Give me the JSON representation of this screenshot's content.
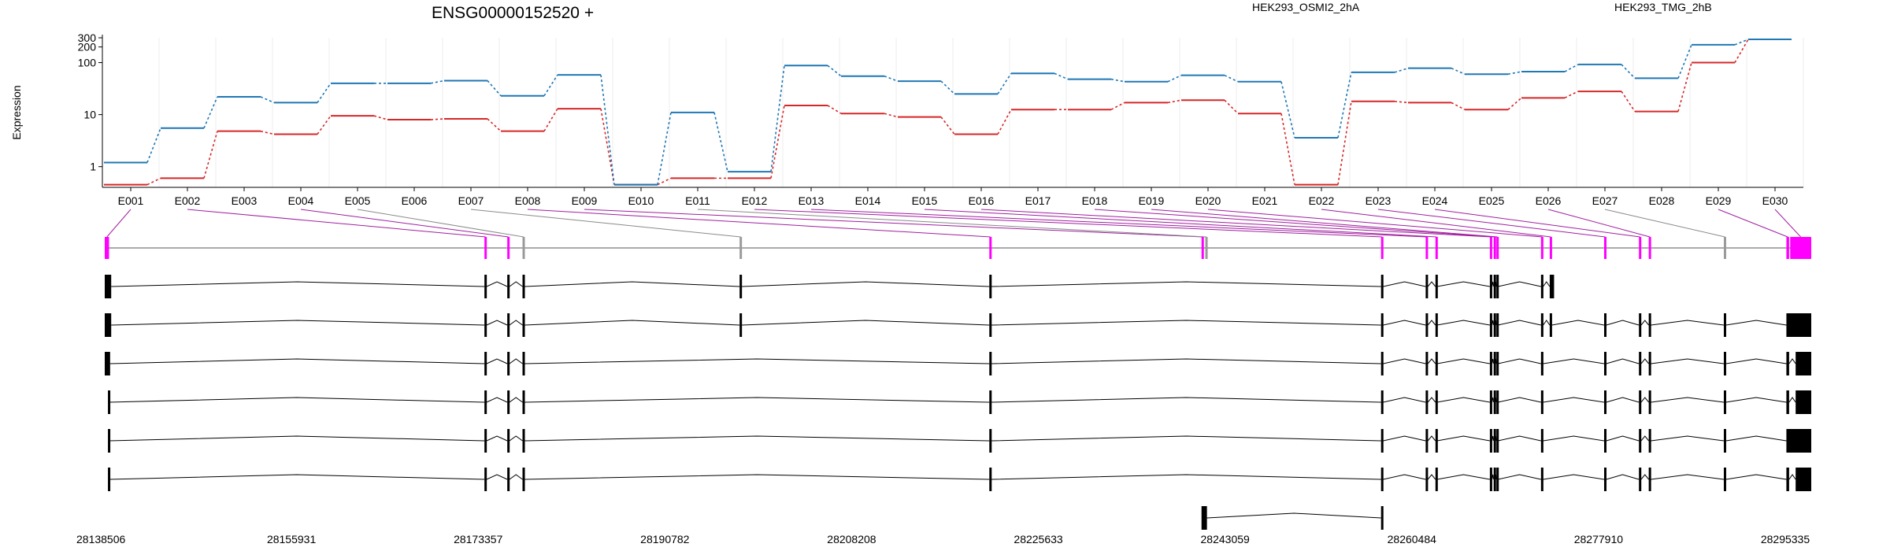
{
  "chart_data": {
    "type": "line",
    "title": "ENSG00000152520 +",
    "ylabel": "Expression",
    "y_scale": "log",
    "y_ticks": [
      "1",
      "10",
      "100",
      "200",
      "300"
    ],
    "ylim": [
      0.4,
      300
    ],
    "grid": "vertical",
    "categories": [
      "E001",
      "E002",
      "E003",
      "E004",
      "E005",
      "E006",
      "E007",
      "E008",
      "E009",
      "E010",
      "E011",
      "E012",
      "E013",
      "E014",
      "E015",
      "E016",
      "E017",
      "E018",
      "E019",
      "E020",
      "E021",
      "E022",
      "E023",
      "E024",
      "E025",
      "E026",
      "E027",
      "E028",
      "E029",
      "E030"
    ],
    "series": [
      {
        "name": "HEK293_OSMI2_2hA",
        "color": "#d62728",
        "values": [
          0.45,
          0.6,
          4.8,
          4.2,
          9.5,
          8,
          8.3,
          4.8,
          13,
          0.45,
          0.6,
          0.6,
          15,
          10.5,
          9,
          4.2,
          12.5,
          12.5,
          17,
          19,
          10.5,
          0.45,
          18,
          17,
          12.5,
          21,
          28,
          11.5,
          100,
          280
        ]
      },
      {
        "name": "HEK293_TMG_2hB",
        "color": "#1f77b4",
        "values": [
          1.2,
          5.5,
          22,
          17,
          40,
          40,
          45,
          23,
          58,
          0.45,
          11,
          0.8,
          88,
          55,
          44,
          25,
          62,
          48,
          43,
          57,
          43,
          3.6,
          65,
          78,
          60,
          67,
          92,
          50,
          220,
          280
        ]
      }
    ],
    "xaxis_ticks": [
      "28138506",
      "28155931",
      "28173357",
      "28190782",
      "28208208",
      "28225633",
      "28243059",
      "28260484",
      "28277910",
      "28295335"
    ],
    "xaxis_range": [
      28138506,
      28295335
    ],
    "exon_color": "#ff00ff",
    "exons": [
      [
        28138506,
        28138900
      ],
      [
        28173400,
        28173550
      ],
      [
        28175500,
        28175700
      ],
      [
        28176900,
        28177100
      ],
      [
        28196850,
        28197050
      ],
      [
        28219800,
        28220000
      ],
      [
        28239300,
        28239500
      ],
      [
        28239650,
        28239800
      ],
      [
        28255800,
        28256000
      ],
      [
        28259900,
        28260100
      ],
      [
        28260800,
        28260950
      ],
      [
        28265800,
        28266000
      ],
      [
        28266150,
        28266300
      ],
      [
        28266400,
        28266550
      ],
      [
        28270500,
        28270700
      ],
      [
        28271300,
        28271500
      ],
      [
        28276300,
        28276500
      ],
      [
        28279500,
        28279700
      ],
      [
        28280400,
        28280600
      ],
      [
        28287300,
        28287500
      ],
      [
        28293050,
        28293300
      ],
      [
        28293400,
        28295335
      ]
    ],
    "gray_exons": [
      3,
      4,
      7,
      19
    ],
    "transcripts": [
      [
        [
          28138506,
          28139100
        ],
        [
          28173400,
          28173600
        ],
        [
          28175500,
          28175700
        ],
        [
          28176900,
          28177100
        ],
        [
          28196850,
          28197050
        ],
        [
          28219800,
          28220000
        ],
        [
          28255800,
          28256000
        ],
        [
          28259900,
          28260100
        ],
        [
          28260800,
          28260950
        ],
        [
          28265800,
          28266000
        ],
        [
          28266150,
          28266300
        ],
        [
          28266400,
          28266550
        ],
        [
          28270500,
          28270700
        ],
        [
          28271300,
          28271700
        ]
      ],
      [
        [
          28138506,
          28139100
        ],
        [
          28173400,
          28173600
        ],
        [
          28175500,
          28175700
        ],
        [
          28176900,
          28177100
        ],
        [
          28196850,
          28197050
        ],
        [
          28219800,
          28220000
        ],
        [
          28255800,
          28256000
        ],
        [
          28259900,
          28260100
        ],
        [
          28260800,
          28260950
        ],
        [
          28265800,
          28266000
        ],
        [
          28266150,
          28266300
        ],
        [
          28266400,
          28266550
        ],
        [
          28270500,
          28270700
        ],
        [
          28271300,
          28271500
        ],
        [
          28276300,
          28276500
        ],
        [
          28279500,
          28279700
        ],
        [
          28280400,
          28280600
        ],
        [
          28287300,
          28287500
        ],
        [
          28293050,
          28295335
        ]
      ],
      [
        [
          28138506,
          28139000
        ],
        [
          28173400,
          28173600
        ],
        [
          28175500,
          28175700
        ],
        [
          28176900,
          28177100
        ],
        [
          28219800,
          28220000
        ],
        [
          28255800,
          28256000
        ],
        [
          28259900,
          28260100
        ],
        [
          28260800,
          28260950
        ],
        [
          28265800,
          28266000
        ],
        [
          28266150,
          28266300
        ],
        [
          28266400,
          28266550
        ],
        [
          28270500,
          28270700
        ],
        [
          28276300,
          28276500
        ],
        [
          28279500,
          28279700
        ],
        [
          28280400,
          28280600
        ],
        [
          28287300,
          28287500
        ],
        [
          28293050,
          28293300
        ],
        [
          28293900,
          28295335
        ]
      ],
      [
        [
          28138800,
          28138900
        ],
        [
          28173400,
          28173600
        ],
        [
          28175500,
          28175700
        ],
        [
          28176900,
          28177100
        ],
        [
          28219800,
          28220000
        ],
        [
          28255800,
          28256000
        ],
        [
          28259900,
          28260100
        ],
        [
          28260800,
          28260950
        ],
        [
          28265800,
          28266000
        ],
        [
          28266150,
          28266300
        ],
        [
          28266400,
          28266550
        ],
        [
          28270500,
          28270700
        ],
        [
          28276300,
          28276500
        ],
        [
          28279500,
          28279700
        ],
        [
          28280400,
          28280600
        ],
        [
          28287300,
          28287500
        ],
        [
          28293050,
          28293300
        ],
        [
          28293900,
          28295335
        ]
      ],
      [
        [
          28138800,
          28138900
        ],
        [
          28173400,
          28173600
        ],
        [
          28175500,
          28175700
        ],
        [
          28176900,
          28177100
        ],
        [
          28219800,
          28220000
        ],
        [
          28255800,
          28256000
        ],
        [
          28259900,
          28260100
        ],
        [
          28260800,
          28260950
        ],
        [
          28265800,
          28266000
        ],
        [
          28266150,
          28266300
        ],
        [
          28266400,
          28266550
        ],
        [
          28270500,
          28270700
        ],
        [
          28276300,
          28276500
        ],
        [
          28279500,
          28279700
        ],
        [
          28280400,
          28280600
        ],
        [
          28287300,
          28287500
        ],
        [
          28293050,
          28295335
        ]
      ],
      [
        [
          28138800,
          28138900
        ],
        [
          28173400,
          28173600
        ],
        [
          28175500,
          28175700
        ],
        [
          28176900,
          28177100
        ],
        [
          28219800,
          28220000
        ],
        [
          28255800,
          28256000
        ],
        [
          28259900,
          28260100
        ],
        [
          28260800,
          28260950
        ],
        [
          28265800,
          28266000
        ],
        [
          28266150,
          28266300
        ],
        [
          28266400,
          28266550
        ],
        [
          28270500,
          28270700
        ],
        [
          28276300,
          28276500
        ],
        [
          28279500,
          28279700
        ],
        [
          28280400,
          28280600
        ],
        [
          28287300,
          28287500
        ],
        [
          28293050,
          28293300
        ],
        [
          28293900,
          28295335
        ]
      ],
      [
        [
          28239300,
          28239800
        ],
        [
          28255800,
          28256000
        ]
      ]
    ]
  }
}
